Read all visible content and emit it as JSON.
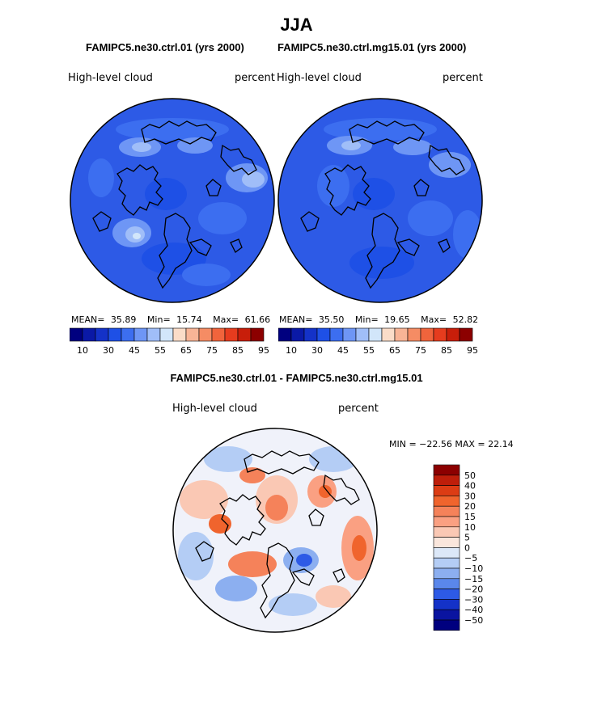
{
  "season_title": "JJA",
  "panels": [
    {
      "title": "FAMIPC5.ne30.ctrl.01 (yrs 2000)",
      "variable": "High-level cloud",
      "units": "percent",
      "stats": {
        "mean_label": "MEAN=",
        "mean": "35.89",
        "min_label": "Min=",
        "min": "15.74",
        "max_label": "Max=",
        "max": "61.66"
      },
      "colorbar_ticks": [
        "10",
        "30",
        "45",
        "55",
        "65",
        "75",
        "85",
        "95"
      ]
    },
    {
      "title": "FAMIPC5.ne30.ctrl.mg15.01 (yrs 2000)",
      "variable": "High-level cloud",
      "units": "percent",
      "stats": {
        "mean_label": "MEAN=",
        "mean": "35.50",
        "min_label": "Min=",
        "min": "19.65",
        "max_label": "Max=",
        "max": "52.82"
      },
      "colorbar_ticks": [
        "10",
        "30",
        "45",
        "55",
        "65",
        "75",
        "85",
        "95"
      ]
    }
  ],
  "diff_panel": {
    "title": "FAMIPC5.ne30.ctrl.01 - FAMIPC5.ne30.ctrl.mg15.01",
    "variable": "High-level cloud",
    "units": "percent",
    "minmax_text": "MIN = −22.56 MAX =   22.14",
    "colorbar_labels": [
      "50",
      "40",
      "30",
      "20",
      "15",
      "10",
      "5",
      "0",
      "−5",
      "−10",
      "−15",
      "−20",
      "−30",
      "−40",
      "−50"
    ]
  },
  "colors": {
    "abs_scale": [
      "#00007f",
      "#0a19a6",
      "#1432c8",
      "#1e50e6",
      "#3c6ef0",
      "#6e96f5",
      "#a0bef8",
      "#d2e6fa",
      "#fadcc8",
      "#f8b496",
      "#f58c64",
      "#f0643c",
      "#e63c1e",
      "#c81e0a",
      "#8c0000"
    ],
    "diff_scale": [
      "#8c0000",
      "#be1e0a",
      "#dc3c14",
      "#f0642d",
      "#f5825a",
      "#faa082",
      "#fac8b4",
      "#fae6dc",
      "#dce8f8",
      "#b4cdf5",
      "#8caff0",
      "#5a87eb",
      "#2d5ae6",
      "#1432c8",
      "#0a14a0",
      "#00007f"
    ],
    "field_base": "#2d5ae6"
  }
}
